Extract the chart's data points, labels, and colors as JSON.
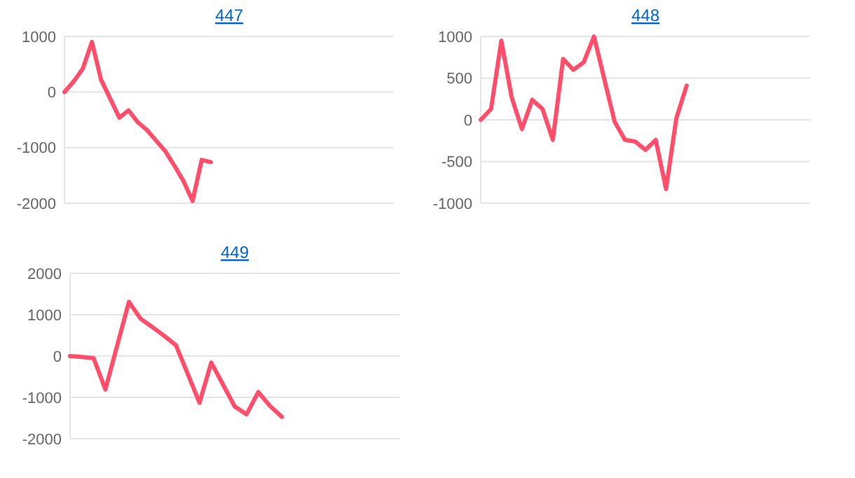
{
  "chart_data": [
    {
      "type": "line",
      "title": "447",
      "categories": [
        null,
        null,
        null,
        null,
        null,
        null,
        null,
        null,
        null,
        null,
        null,
        null,
        null,
        null,
        null,
        null,
        null,
        null,
        null,
        null,
        null,
        null,
        null,
        null,
        null,
        null,
        null,
        null,
        null,
        null,
        null,
        null,
        null,
        null,
        null,
        null,
        null
      ],
      "series": [
        {
          "color": "#ff4d6a",
          "values": [
            0,
            190,
            420,
            900,
            220,
            -120,
            -460,
            -330,
            -540,
            -680,
            -870,
            -1060,
            -1320,
            -1600,
            -1960,
            -1220,
            -1260,
            null,
            null,
            null,
            null,
            null,
            null,
            null,
            null,
            null,
            null,
            null,
            null,
            null,
            null,
            null,
            null,
            null,
            null,
            null,
            null
          ]
        }
      ],
      "ylim": [
        -2000,
        1000
      ],
      "yticks": [
        -2000,
        -1000,
        0,
        1000
      ],
      "grid": "y",
      "marker": "none",
      "line_style": "solid"
    },
    {
      "type": "line",
      "title": "448",
      "categories": [
        null,
        null,
        null,
        null,
        null,
        null,
        null,
        null,
        null,
        null,
        null,
        null,
        null,
        null,
        null,
        null,
        null,
        null,
        null,
        null,
        null,
        null,
        null,
        null,
        null,
        null,
        null,
        null,
        null,
        null,
        null,
        null,
        null
      ],
      "series": [
        {
          "color": "#ff4d6a",
          "values": [
            0,
            130,
            950,
            270,
            -110,
            240,
            130,
            -240,
            730,
            600,
            690,
            1000,
            490,
            -20,
            -240,
            -260,
            -360,
            -240,
            -830,
            20,
            410,
            null,
            null,
            null,
            null,
            null,
            null,
            null,
            null,
            null,
            null,
            null,
            null
          ]
        }
      ],
      "ylim": [
        -1000,
        1000
      ],
      "yticks": [
        -1000,
        -500,
        0,
        500,
        1000
      ],
      "grid": "y",
      "marker": "none",
      "line_style": "solid"
    },
    {
      "type": "line",
      "title": "449",
      "categories": [
        null,
        null,
        null,
        null,
        null,
        null,
        null,
        null,
        null,
        null,
        null,
        null,
        null,
        null,
        null,
        null,
        null,
        null,
        null,
        null,
        null,
        null,
        null,
        null,
        null,
        null,
        null,
        null,
        null
      ],
      "series": [
        {
          "color": "#ff4d6a",
          "values": [
            0,
            -20,
            -50,
            -810,
            250,
            1310,
            900,
            700,
            490,
            260,
            -430,
            -1130,
            -160,
            -690,
            -1220,
            -1410,
            -870,
            -1210,
            -1470,
            null,
            null,
            null,
            null,
            null,
            null,
            null,
            null,
            null,
            null
          ]
        }
      ],
      "ylim": [
        -2000,
        2000
      ],
      "yticks": [
        -2000,
        -1000,
        0,
        1000,
        2000
      ],
      "grid": "y",
      "marker": "none",
      "line_style": "solid"
    }
  ]
}
